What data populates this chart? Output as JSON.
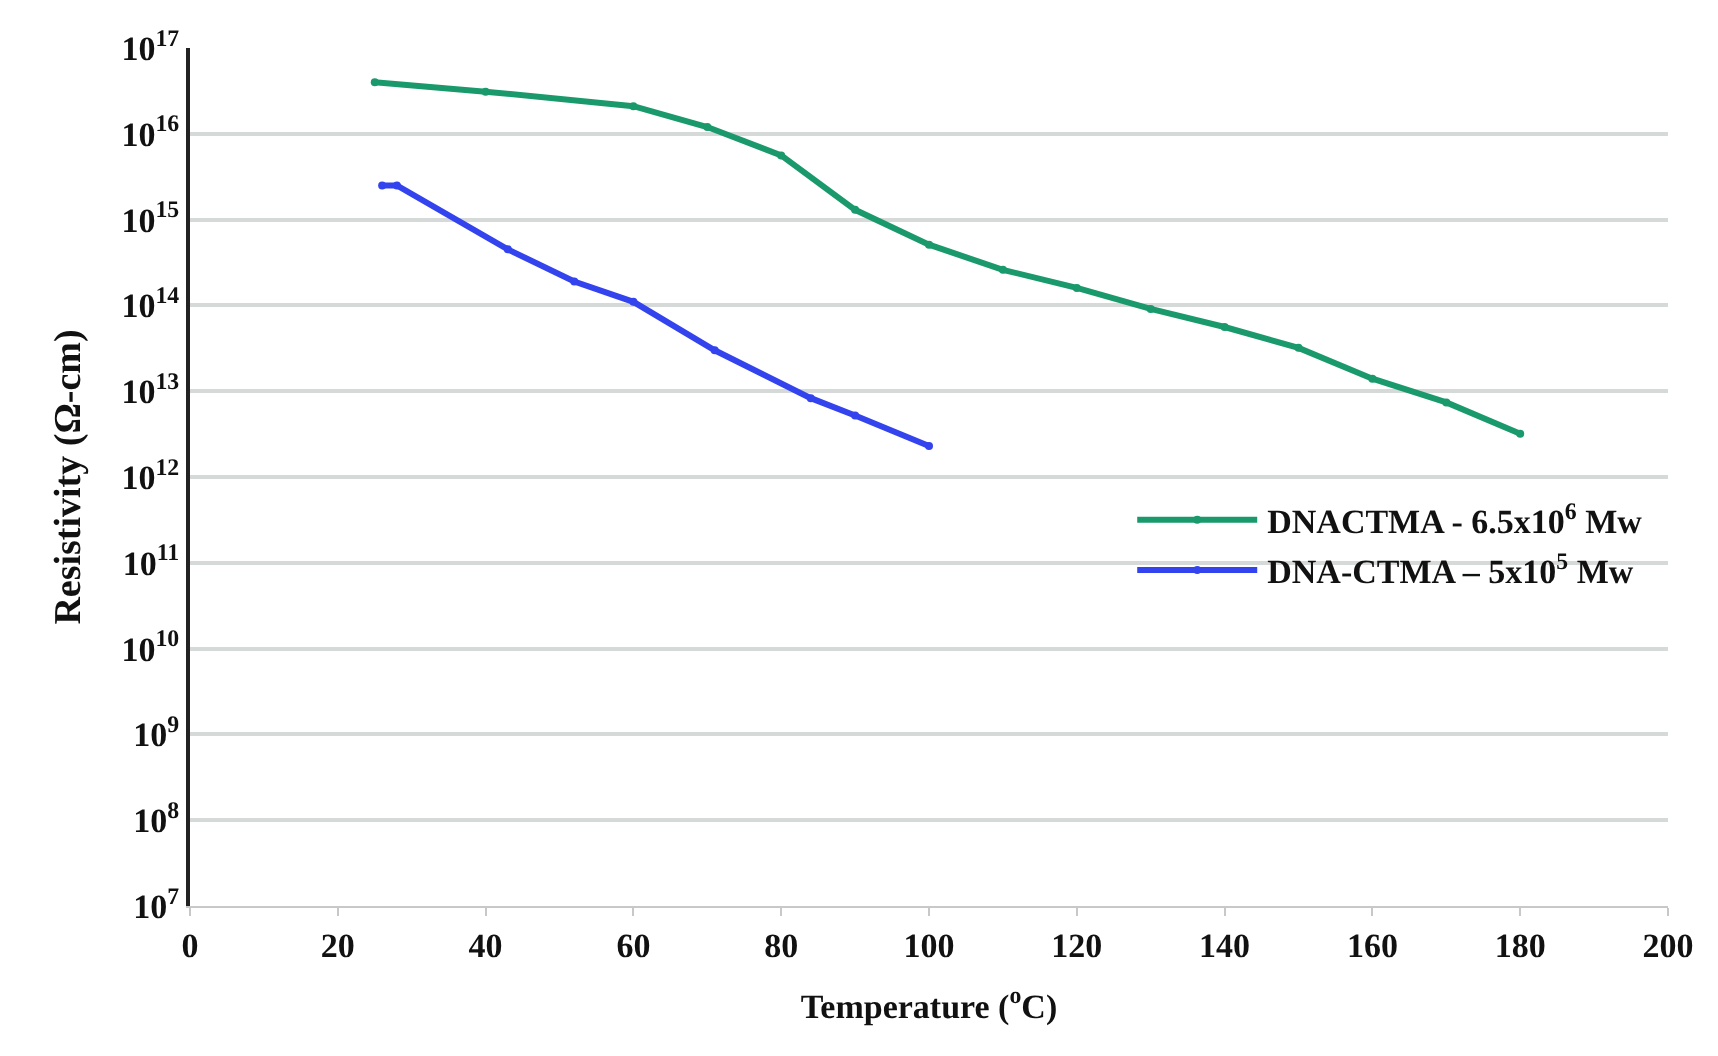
{
  "chart_data": {
    "type": "line",
    "xlabel": "Temperature ($^{o}$C)",
    "ylabel": "Resistivity (Ω-cm)",
    "log": "y",
    "grid": "y",
    "legend": "right",
    "marker": "circle",
    "line_style": "solid",
    "xlim": [
      0,
      200
    ],
    "xticks": [
      0,
      20,
      40,
      60,
      80,
      100,
      120,
      140,
      160,
      180,
      200
    ],
    "ylim": [
      10000000.0,
      1e+17
    ],
    "yticks": [
      {
        "value": 10000000.0,
        "label": "10$^{7}$"
      },
      {
        "value": 100000000.0,
        "label": "10$^{8}$"
      },
      {
        "value": 1000000000.0,
        "label": "10$^{9}$"
      },
      {
        "value": 10000000000.0,
        "label": "10$^{10}$"
      },
      {
        "value": 100000000000.0,
        "label": "10$^{11}$"
      },
      {
        "value": 1000000000000.0,
        "label": "10$^{12}$"
      },
      {
        "value": 10000000000000.0,
        "label": "10$^{13}$"
      },
      {
        "value": 100000000000000.0,
        "label": "10$^{14}$"
      },
      {
        "value": 1000000000000000.0,
        "label": "10$^{15}$"
      },
      {
        "value": 1e+16,
        "label": "10$^{16}$"
      },
      {
        "value": 1e+17,
        "label": "10$^{17}$"
      }
    ],
    "series": [
      {
        "name": "DNACTMA - 6.5x10$^{6}$ Mw",
        "color": "#1a9a6c",
        "x": [
          25,
          40,
          60,
          70,
          80,
          90,
          100,
          110,
          120,
          130,
          140,
          150,
          160,
          170,
          180
        ],
        "values": [
          4e+16,
          3.1e+16,
          2.1e+16,
          1.2e+16,
          5600000000000000.0,
          1300000000000000.0,
          510000000000000.0,
          260000000000000.0,
          160000000000000.0,
          91000000000000.0,
          56000000000000.0,
          32000000000000.0,
          14000000000000.0,
          7400000000000.0,
          3200000000000.0
        ]
      },
      {
        "name": "DNA-CTMA – 5x10$^{5}$ Mw",
        "color": "#3344ee",
        "x": [
          26,
          28,
          43,
          52,
          60,
          71,
          84,
          90,
          100
        ],
        "values": [
          2500000000000000.0,
          2500000000000000.0,
          450000000000000.0,
          190000000000000.0,
          110000000000000.0,
          30000000000000.0,
          8300000000000.0,
          5200000000000.0,
          2300000000000.0
        ]
      }
    ]
  }
}
